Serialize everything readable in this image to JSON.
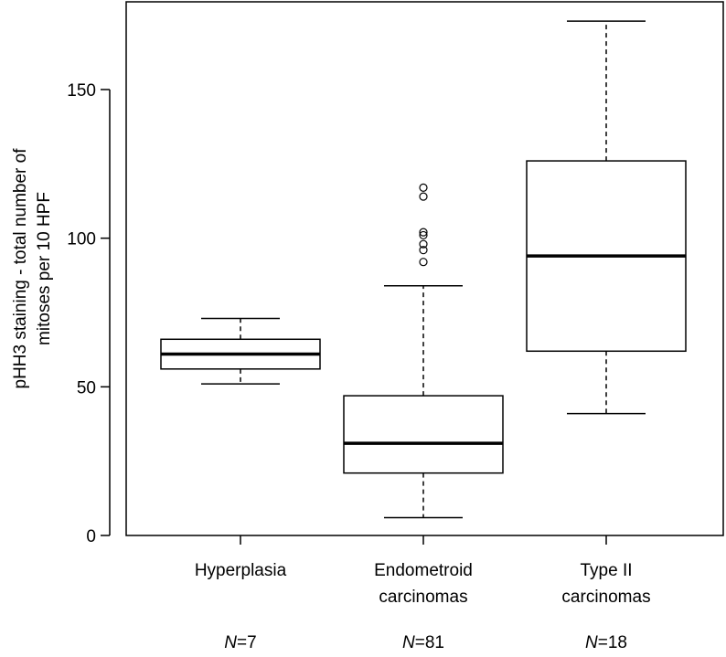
{
  "chart_data": {
    "type": "box",
    "ylabel_line1": "pHH3 staining - total number of",
    "ylabel_line2": "mitoses per 10 HPF",
    "ylim": [
      0,
      180
    ],
    "yticks": [
      0,
      50,
      100,
      150
    ],
    "grid": false,
    "groups": [
      {
        "label_lines": [
          "Hyperplasia"
        ],
        "n_prefix": "N",
        "n_value": "=7",
        "whisker_low": 51,
        "q1": 56,
        "median": 61,
        "q3": 66,
        "whisker_high": 73,
        "outliers": []
      },
      {
        "label_lines": [
          "Endometroid",
          "carcinomas"
        ],
        "n_prefix": "N",
        "n_value": "=81",
        "whisker_low": 6,
        "q1": 21,
        "median": 31,
        "q3": 47,
        "whisker_high": 84,
        "outliers": [
          92,
          96,
          98,
          101,
          102,
          114,
          117
        ]
      },
      {
        "label_lines": [
          "Type II",
          "carcinomas"
        ],
        "n_prefix": "N",
        "n_value": "=18",
        "whisker_low": 41,
        "q1": 62,
        "median": 94,
        "q3": 126,
        "whisker_high": 173,
        "outliers": []
      }
    ]
  }
}
